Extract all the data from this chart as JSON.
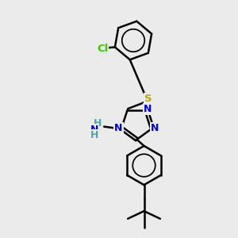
{
  "background_color": "#ebebeb",
  "bond_color": "#000000",
  "bond_width": 1.8,
  "atom_labels": {
    "Cl": {
      "color": "#33cc00",
      "fontsize": 9.5
    },
    "S": {
      "color": "#bbaa00",
      "fontsize": 9.5
    },
    "N": {
      "color": "#0000dd",
      "fontsize": 9
    },
    "NH": {
      "color": "#44aaaa",
      "fontsize": 9
    },
    "H": {
      "color": "#44aaaa",
      "fontsize": 9
    }
  },
  "figsize": [
    3.0,
    3.0
  ],
  "dpi": 100
}
